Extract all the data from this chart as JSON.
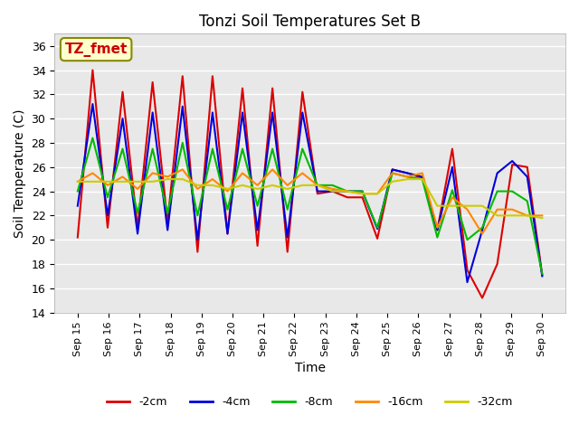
{
  "title": "Tonzi Soil Temperatures Set B",
  "xlabel": "Time",
  "ylabel": "Soil Temperature (C)",
  "ylim": [
    14,
    37
  ],
  "yticks": [
    14,
    16,
    18,
    20,
    22,
    24,
    26,
    28,
    30,
    32,
    34,
    36
  ],
  "bg_color": "#e8e8e8",
  "annotation_label": "TZ_fmet",
  "annotation_bg": "#ffffcc",
  "annotation_fg": "#cc0000",
  "series": {
    "-2cm": {
      "color": "#dd0000",
      "lw": 1.5
    },
    "-4cm": {
      "color": "#0000dd",
      "lw": 1.5
    },
    "-8cm": {
      "color": "#00bb00",
      "lw": 1.5
    },
    "-16cm": {
      "color": "#ff8800",
      "lw": 1.5
    },
    "-32cm": {
      "color": "#cccc00",
      "lw": 1.5
    }
  },
  "x_labels": [
    "Sep 15",
    "Sep 16",
    "Sep 17",
    "Sep 18",
    "Sep 19",
    "Sep 20",
    "Sep 21",
    "Sep 22",
    "Sep 23",
    "Sep 24",
    "Sep 25",
    "Sep 26",
    "Sep 27",
    "Sep 28",
    "Sep 29",
    "Sep 30"
  ],
  "data": {
    "-2cm": [
      20.2,
      34.0,
      21.0,
      32.2,
      21.0,
      33.0,
      21.5,
      33.5,
      19.0,
      33.5,
      20.5,
      32.5,
      19.5,
      32.5,
      19.0,
      32.2,
      23.8,
      24.0,
      23.5,
      23.5,
      20.1,
      25.8,
      25.5,
      25.1,
      20.8,
      27.5,
      17.5,
      15.2,
      18.0,
      26.2,
      26.0,
      17.1
    ],
    "-4cm": [
      22.8,
      31.2,
      22.0,
      30.0,
      20.5,
      30.5,
      20.8,
      31.0,
      20.0,
      30.5,
      20.5,
      30.5,
      20.8,
      30.5,
      20.2,
      30.5,
      24.0,
      24.0,
      24.0,
      24.0,
      20.9,
      25.8,
      25.5,
      25.2,
      20.8,
      26.0,
      16.5,
      20.8,
      25.5,
      26.5,
      25.2,
      17.0
    ],
    "-8cm": [
      24.0,
      28.4,
      23.5,
      27.5,
      22.2,
      27.5,
      22.2,
      28.0,
      22.0,
      27.5,
      22.5,
      27.5,
      22.8,
      27.5,
      22.5,
      27.5,
      24.5,
      24.5,
      24.0,
      24.0,
      21.0,
      25.5,
      25.2,
      25.0,
      20.2,
      24.1,
      20.0,
      21.0,
      24.0,
      24.0,
      23.2,
      17.2
    ],
    "-16cm": [
      24.8,
      25.5,
      24.5,
      25.2,
      24.2,
      25.5,
      25.2,
      25.8,
      24.2,
      25.0,
      24.0,
      25.5,
      24.5,
      25.8,
      24.5,
      25.5,
      24.5,
      24.2,
      24.0,
      23.8,
      23.8,
      25.5,
      25.2,
      25.5,
      21.0,
      23.5,
      22.5,
      20.5,
      22.5,
      22.5,
      22.0,
      22.0
    ],
    "-32cm": [
      24.8,
      24.8,
      24.8,
      24.8,
      24.8,
      24.8,
      25.0,
      25.0,
      24.5,
      24.5,
      24.2,
      24.5,
      24.2,
      24.5,
      24.2,
      24.5,
      24.5,
      24.0,
      24.0,
      23.8,
      23.8,
      24.8,
      25.0,
      25.0,
      22.8,
      22.8,
      22.8,
      22.8,
      22.0,
      22.0,
      22.0,
      21.8
    ]
  }
}
